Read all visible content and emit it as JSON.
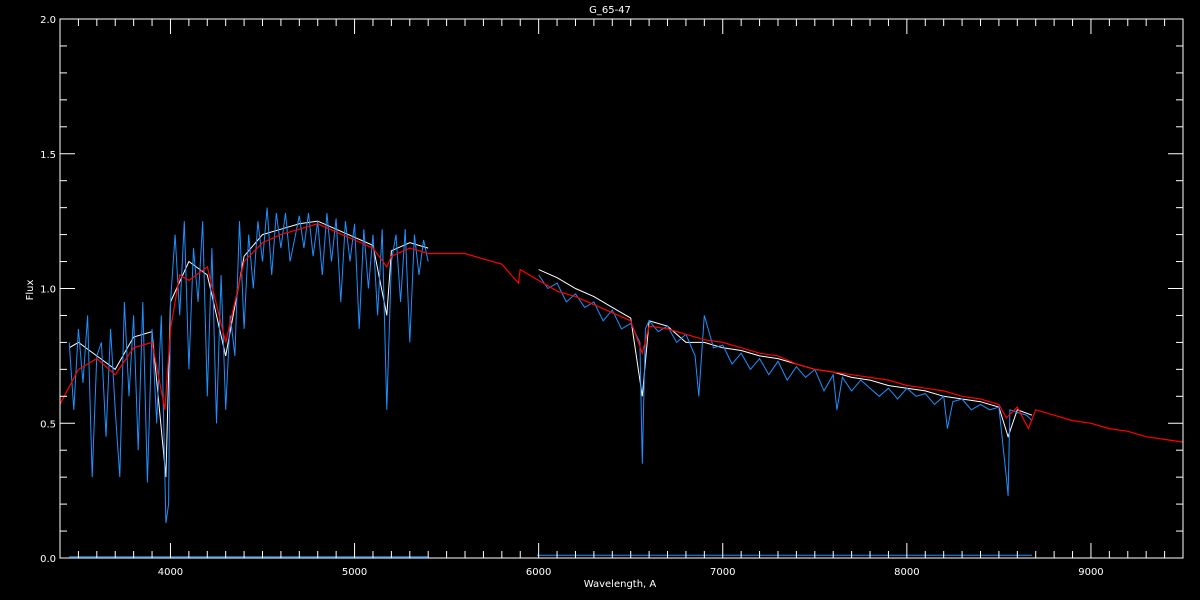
{
  "chart_data": {
    "type": "line",
    "title": "G_65-47",
    "xlabel": "Wavelength, A",
    "ylabel": "Flux",
    "xlim": [
      3400,
      9500
    ],
    "ylim": [
      0.0,
      2.0
    ],
    "x_major_ticks": [
      4000,
      5000,
      6000,
      7000,
      8000,
      9000
    ],
    "x_tick_labels": [
      "4000",
      "5000",
      "6000",
      "7000",
      "8000",
      "9000"
    ],
    "x_minor_step": 100,
    "y_major_ticks": [
      0.0,
      0.5,
      1.0,
      1.5,
      2.0
    ],
    "y_tick_labels": [
      "0.0",
      "0.5",
      "1.0",
      "1.5",
      "2.0"
    ],
    "y_minor_step": 0.1,
    "grid": false,
    "background": "#000000",
    "series": [
      {
        "color": "#ffffff",
        "segments": [
          {
            "x": [
              3450,
              3500,
              3600,
              3700,
              3800,
              3900,
              3975,
              4000,
              4100,
              4200,
              4300,
              4400,
              4500,
              4600,
              4700,
              4800,
              4900,
              5000,
              5100,
              5175,
              5200,
              5300,
              5400
            ],
            "y": [
              0.78,
              0.8,
              0.75,
              0.7,
              0.82,
              0.84,
              0.3,
              0.95,
              1.1,
              1.05,
              0.75,
              1.12,
              1.2,
              1.22,
              1.24,
              1.25,
              1.22,
              1.19,
              1.16,
              0.9,
              1.14,
              1.17,
              1.15
            ]
          },
          {
            "x": [
              6000,
              6100,
              6200,
              6300,
              6400,
              6500,
              6563,
              6600,
              6700,
              6800,
              6900,
              7000,
              7100,
              7200,
              7300,
              7400,
              7500,
              7600,
              7700,
              7800,
              7900,
              8000,
              8100,
              8200,
              8300,
              8400,
              8500,
              8550,
              8600,
              8680
            ],
            "y": [
              1.07,
              1.04,
              1.0,
              0.97,
              0.93,
              0.89,
              0.6,
              0.88,
              0.86,
              0.8,
              0.8,
              0.78,
              0.77,
              0.75,
              0.74,
              0.72,
              0.7,
              0.69,
              0.67,
              0.66,
              0.64,
              0.63,
              0.62,
              0.6,
              0.59,
              0.58,
              0.56,
              0.45,
              0.55,
              0.53
            ]
          }
        ]
      },
      {
        "color": "#1e90ff",
        "segments": [
          {
            "x": [
              3450,
              3475,
              3500,
              3525,
              3550,
              3575,
              3600,
              3625,
              3650,
              3675,
              3700,
              3725,
              3750,
              3775,
              3800,
              3825,
              3850,
              3875,
              3900,
              3925,
              3950,
              3975,
              3990,
              4000,
              4025,
              4050,
              4075,
              4100,
              4125,
              4150,
              4175,
              4200,
              4225,
              4250,
              4275,
              4300,
              4325,
              4350,
              4375,
              4400,
              4425,
              4450,
              4475,
              4500,
              4525,
              4550,
              4575,
              4600,
              4625,
              4650,
              4700,
              4725,
              4750,
              4775,
              4800,
              4825,
              4850,
              4875,
              4900,
              4925,
              4950,
              4975,
              5000,
              5025,
              5050,
              5075,
              5100,
              5125,
              5150,
              5175,
              5200,
              5225,
              5250,
              5275,
              5300,
              5325,
              5350,
              5375,
              5400
            ],
            "y": [
              0.8,
              0.55,
              0.85,
              0.65,
              0.9,
              0.3,
              0.75,
              0.8,
              0.45,
              0.85,
              0.55,
              0.3,
              0.95,
              0.6,
              0.9,
              0.4,
              0.95,
              0.28,
              0.85,
              0.5,
              0.9,
              0.13,
              0.2,
              0.95,
              1.2,
              0.9,
              1.25,
              0.7,
              1.15,
              0.95,
              1.25,
              0.6,
              1.15,
              0.5,
              1.05,
              0.55,
              0.9,
              0.75,
              1.25,
              0.85,
              1.2,
              1.0,
              1.25,
              1.1,
              1.3,
              1.05,
              1.28,
              1.15,
              1.28,
              1.1,
              1.27,
              1.15,
              1.28,
              1.12,
              1.25,
              1.05,
              1.28,
              1.1,
              1.26,
              0.95,
              1.25,
              1.1,
              1.24,
              0.85,
              1.22,
              1.0,
              1.2,
              0.9,
              1.22,
              0.55,
              1.1,
              1.2,
              0.95,
              1.22,
              0.8,
              1.2,
              1.05,
              1.18,
              1.1
            ]
          },
          {
            "x": [
              6000,
              6050,
              6100,
              6150,
              6200,
              6250,
              6300,
              6350,
              6400,
              6450,
              6500,
              6550,
              6563,
              6580,
              6600,
              6650,
              6700,
              6750,
              6800,
              6850,
              6870,
              6900,
              6950,
              7000,
              7050,
              7100,
              7150,
              7200,
              7250,
              7300,
              7350,
              7400,
              7450,
              7500,
              7550,
              7600,
              7620,
              7650,
              7700,
              7750,
              7800,
              7850,
              7900,
              7950,
              8000,
              8050,
              8100,
              8150,
              8200,
              8220,
              8250,
              8300,
              8350,
              8400,
              8450,
              8500,
              8540,
              8550,
              8560,
              8600,
              8650,
              8680
            ],
            "y": [
              1.05,
              1.0,
              1.02,
              0.95,
              0.98,
              0.93,
              0.95,
              0.88,
              0.92,
              0.85,
              0.87,
              0.8,
              0.35,
              0.85,
              0.88,
              0.84,
              0.86,
              0.8,
              0.83,
              0.75,
              0.6,
              0.9,
              0.78,
              0.79,
              0.72,
              0.76,
              0.7,
              0.74,
              0.68,
              0.73,
              0.66,
              0.71,
              0.67,
              0.7,
              0.62,
              0.68,
              0.55,
              0.67,
              0.62,
              0.66,
              0.63,
              0.6,
              0.63,
              0.59,
              0.63,
              0.6,
              0.61,
              0.57,
              0.6,
              0.48,
              0.58,
              0.59,
              0.55,
              0.57,
              0.55,
              0.56,
              0.3,
              0.23,
              0.55,
              0.54,
              0.53,
              0.51
            ]
          },
          {
            "x": [
              3450,
              5400
            ],
            "y": [
              0.005,
              0.005
            ]
          },
          {
            "x": [
              5990,
              8680
            ],
            "y": [
              0.01,
              0.01
            ]
          }
        ]
      },
      {
        "color": "#ff0000",
        "segments": [
          {
            "x": [
              3400,
              3500,
              3600,
              3700,
              3800,
              3900,
              3950,
              3970,
              4000,
              4050,
              4100,
              4200,
              4300,
              4350,
              4400,
              4500,
              4600,
              4700,
              4800,
              4900,
              5000,
              5100,
              5175,
              5200,
              5300,
              5400,
              5500,
              5600,
              5700,
              5800,
              5890,
              5900,
              6000,
              6100,
              6200,
              6300,
              6400,
              6500,
              6563,
              6600,
              6700,
              6800,
              6900,
              7000,
              7100,
              7200,
              7300,
              7400,
              7500,
              7600,
              7700,
              7800,
              7900,
              8000,
              8100,
              8200,
              8300,
              8400,
              8500,
              8540,
              8600,
              8660,
              8700,
              8800,
              8900,
              9000,
              9100,
              9200,
              9300,
              9400,
              9500
            ],
            "y": [
              0.57,
              0.7,
              0.74,
              0.68,
              0.78,
              0.8,
              0.62,
              0.55,
              0.85,
              1.05,
              1.03,
              1.08,
              0.8,
              0.95,
              1.1,
              1.17,
              1.2,
              1.22,
              1.24,
              1.21,
              1.18,
              1.15,
              1.08,
              1.12,
              1.15,
              1.13,
              1.13,
              1.13,
              1.11,
              1.09,
              1.02,
              1.07,
              1.03,
              0.99,
              0.97,
              0.94,
              0.91,
              0.88,
              0.76,
              0.86,
              0.85,
              0.83,
              0.81,
              0.8,
              0.78,
              0.76,
              0.75,
              0.72,
              0.7,
              0.69,
              0.68,
              0.67,
              0.66,
              0.64,
              0.63,
              0.62,
              0.6,
              0.59,
              0.57,
              0.52,
              0.56,
              0.48,
              0.55,
              0.53,
              0.51,
              0.5,
              0.48,
              0.47,
              0.45,
              0.44,
              0.43
            ]
          }
        ]
      }
    ]
  }
}
